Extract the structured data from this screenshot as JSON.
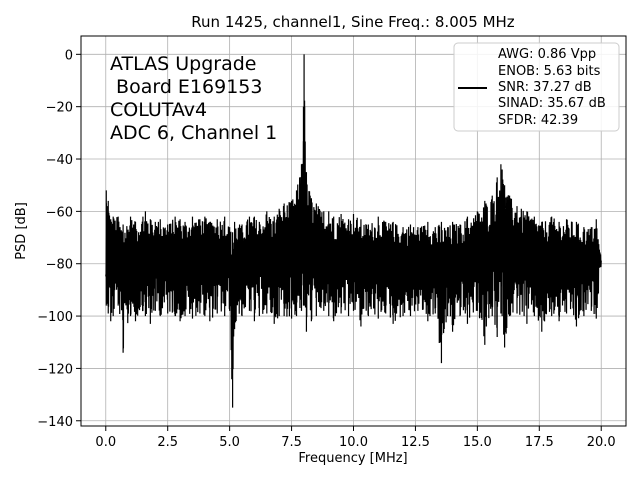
{
  "chart_data": {
    "type": "line",
    "title": "Run 1425, channel1, Sine Freq.: 8.005 MHz",
    "xlabel": "Frequency [MHz]",
    "ylabel": "PSD [dB]",
    "xlim": [
      -1.0,
      21.0
    ],
    "ylim": [
      -142,
      7
    ],
    "xticks": [
      0.0,
      2.5,
      5.0,
      7.5,
      10.0,
      12.5,
      15.0,
      17.5,
      20.0
    ],
    "xtick_labels": [
      "0.0",
      "2.5",
      "5.0",
      "7.5",
      "10.0",
      "12.5",
      "15.0",
      "17.5",
      "20.0"
    ],
    "yticks": [
      0,
      -20,
      -40,
      -60,
      -80,
      -100,
      -120,
      -140
    ],
    "ytick_labels": [
      "0",
      "−20",
      "−40",
      "−60",
      "−80",
      "−100",
      "−120",
      "−140"
    ],
    "grid": true,
    "annotation": [
      "ATLAS Upgrade",
      " Board E169153",
      "COLUTAv4",
      "ADC 6, Channel 1"
    ],
    "legend": {
      "position": "top-right",
      "lines": [
        "AWG: 0.86 Vpp",
        "ENOB: 5.63 bits",
        "SNR: 37.27 dB",
        "SINAD: 35.67 dB",
        "SFDR: 42.39"
      ]
    },
    "line_color": "#000000",
    "series": [
      {
        "x": [
          0.0,
          0.02,
          0.05,
          0.1,
          0.2,
          0.3,
          0.5,
          0.7,
          1.0,
          1.2,
          1.5,
          1.6,
          1.8,
          2.0,
          2.2,
          2.5,
          2.8,
          3.0,
          3.2,
          3.5,
          3.8,
          4.0,
          4.2,
          4.5,
          4.8,
          5.0,
          5.12,
          5.2,
          5.5,
          5.8,
          6.0,
          6.2,
          6.5,
          6.8,
          7.0,
          7.2,
          7.5,
          7.7,
          7.9,
          7.98,
          8.005,
          8.03,
          8.1,
          8.3,
          8.5,
          8.8,
          9.0,
          9.2,
          9.5,
          9.8,
          10.0,
          10.3,
          10.6,
          11.0,
          11.3,
          11.6,
          12.0,
          12.3,
          12.6,
          13.0,
          13.3,
          13.55,
          13.8,
          14.0,
          14.3,
          14.6,
          15.0,
          15.3,
          15.6,
          15.8,
          15.95,
          16.0,
          16.1,
          16.3,
          16.6,
          17.0,
          17.3,
          17.6,
          18.0,
          18.3,
          18.6,
          19.0,
          19.3,
          19.6,
          19.8,
          20.0
        ],
        "upper": [
          -86,
          -52,
          -58,
          -56,
          -63,
          -62,
          -62,
          -65,
          -62,
          -64,
          -62,
          -60,
          -63,
          -64,
          -63,
          -65,
          -62,
          -63,
          -64,
          -62,
          -63,
          -62,
          -64,
          -63,
          -62,
          -66,
          -68,
          -64,
          -65,
          -62,
          -62,
          -64,
          -60,
          -62,
          -59,
          -57,
          -56,
          -52,
          -42,
          -20,
          0,
          -20,
          -45,
          -55,
          -57,
          -60,
          -60,
          -62,
          -61,
          -63,
          -61,
          -63,
          -65,
          -62,
          -64,
          -64,
          -66,
          -65,
          -66,
          -64,
          -66,
          -64,
          -66,
          -64,
          -65,
          -62,
          -60,
          -56,
          -54,
          -47,
          -42,
          -44,
          -50,
          -54,
          -58,
          -60,
          -62,
          -64,
          -62,
          -64,
          -63,
          -64,
          -66,
          -66,
          -63,
          -80
        ],
        "lower": [
          -86,
          -96,
          -95,
          -99,
          -102,
          -100,
          -96,
          -114,
          -100,
          -102,
          -98,
          -100,
          -103,
          -98,
          -100,
          -99,
          -100,
          -102,
          -100,
          -101,
          -99,
          -100,
          -102,
          -99,
          -100,
          -98,
          -135,
          -105,
          -100,
          -98,
          -102,
          -100,
          -99,
          -103,
          -100,
          -100,
          -101,
          -100,
          -98,
          -96,
          -90,
          -96,
          -106,
          -102,
          -100,
          -98,
          -100,
          -102,
          -99,
          -100,
          -98,
          -104,
          -100,
          -101,
          -99,
          -103,
          -100,
          -100,
          -98,
          -102,
          -99,
          -118,
          -100,
          -106,
          -100,
          -103,
          -98,
          -111,
          -100,
          -108,
          -99,
          -100,
          -112,
          -100,
          -99,
          -103,
          -100,
          -106,
          -100,
          -102,
          -99,
          -104,
          -100,
          -98,
          -101,
          -80
        ]
      }
    ]
  }
}
